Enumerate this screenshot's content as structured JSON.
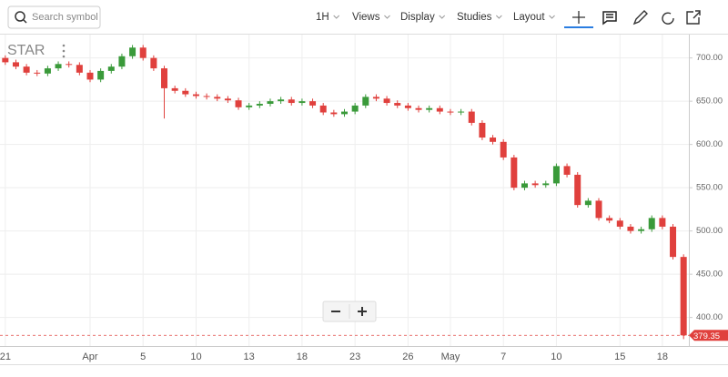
{
  "toolbar": {
    "search_placeholder": "Search symbol",
    "items": [
      "1H",
      "Views",
      "Display",
      "Studies",
      "Layout"
    ]
  },
  "chart_data": {
    "type": "candlestick",
    "symbol": "STAR",
    "categories": [
      "21",
      null,
      null,
      null,
      null,
      null,
      null,
      null,
      "Apr",
      null,
      null,
      null,
      null,
      "5",
      null,
      null,
      null,
      null,
      "10",
      null,
      null,
      null,
      null,
      "13",
      null,
      null,
      null,
      null,
      "18",
      null,
      null,
      null,
      null,
      "23",
      null,
      null,
      null,
      null,
      "26",
      null,
      null,
      null,
      "May",
      null,
      null,
      null,
      null,
      "7",
      null,
      null,
      null,
      null,
      "10",
      null,
      null,
      null,
      null,
      null,
      "15",
      null,
      null,
      null,
      "18",
      null,
      null
    ],
    "open": [
      700,
      695,
      690,
      683,
      682,
      688,
      693,
      692,
      683,
      675,
      685,
      690,
      702,
      712,
      700,
      688,
      665,
      662,
      658,
      656,
      655,
      653,
      651,
      643,
      645,
      647,
      650,
      652,
      648,
      650,
      645,
      637,
      635,
      638,
      645,
      655,
      653,
      648,
      645,
      642,
      640,
      642,
      638,
      637,
      638,
      625,
      608,
      603,
      585,
      550,
      555,
      553,
      555,
      575,
      565,
      530,
      535,
      515,
      512,
      505,
      500,
      502,
      515,
      505,
      470
    ],
    "high": [
      703,
      698,
      693,
      686,
      691,
      696,
      696,
      695,
      686,
      688,
      693,
      705,
      715,
      715,
      703,
      691,
      668,
      665,
      661,
      659,
      658,
      656,
      654,
      648,
      650,
      653,
      655,
      655,
      653,
      653,
      648,
      640,
      641,
      648,
      658,
      658,
      656,
      651,
      648,
      645,
      645,
      645,
      641,
      641,
      641,
      628,
      611,
      606,
      588,
      558,
      558,
      558,
      578,
      578,
      568,
      538,
      538,
      518,
      515,
      508,
      505,
      518,
      518,
      508,
      473
    ],
    "low": [
      692,
      687,
      680,
      679,
      679,
      685,
      689,
      680,
      672,
      672,
      682,
      687,
      699,
      697,
      685,
      630,
      659,
      655,
      653,
      652,
      650,
      648,
      640,
      640,
      642,
      644,
      647,
      645,
      645,
      642,
      634,
      632,
      632,
      635,
      642,
      650,
      645,
      642,
      639,
      637,
      637,
      635,
      634,
      634,
      622,
      605,
      600,
      582,
      547,
      547,
      550,
      550,
      552,
      562,
      527,
      527,
      512,
      509,
      502,
      497,
      497,
      499,
      502,
      467,
      375
    ],
    "close": [
      695,
      690,
      683,
      682,
      688,
      693,
      692,
      683,
      675,
      685,
      690,
      702,
      712,
      700,
      688,
      665,
      662,
      658,
      656,
      655,
      653,
      651,
      643,
      645,
      647,
      650,
      652,
      648,
      650,
      645,
      637,
      635,
      638,
      645,
      655,
      653,
      648,
      645,
      642,
      640,
      642,
      638,
      637,
      638,
      625,
      608,
      603,
      585,
      550,
      555,
      553,
      555,
      575,
      565,
      530,
      535,
      515,
      512,
      505,
      500,
      502,
      515,
      505,
      470,
      379.35
    ],
    "up_color": "#3a9a3a",
    "down_color": "#e0403d",
    "ylim": [
      367,
      727
    ],
    "yticks": [
      {
        "value": 400,
        "label": "400.00"
      },
      {
        "value": 450,
        "label": "450.00"
      },
      {
        "value": 500,
        "label": "500.00"
      },
      {
        "value": 550,
        "label": "550.00"
      },
      {
        "value": 600,
        "label": "600.00"
      },
      {
        "value": 650,
        "label": "650.00"
      },
      {
        "value": 700,
        "label": "700.00"
      }
    ],
    "grid": true
  }
}
